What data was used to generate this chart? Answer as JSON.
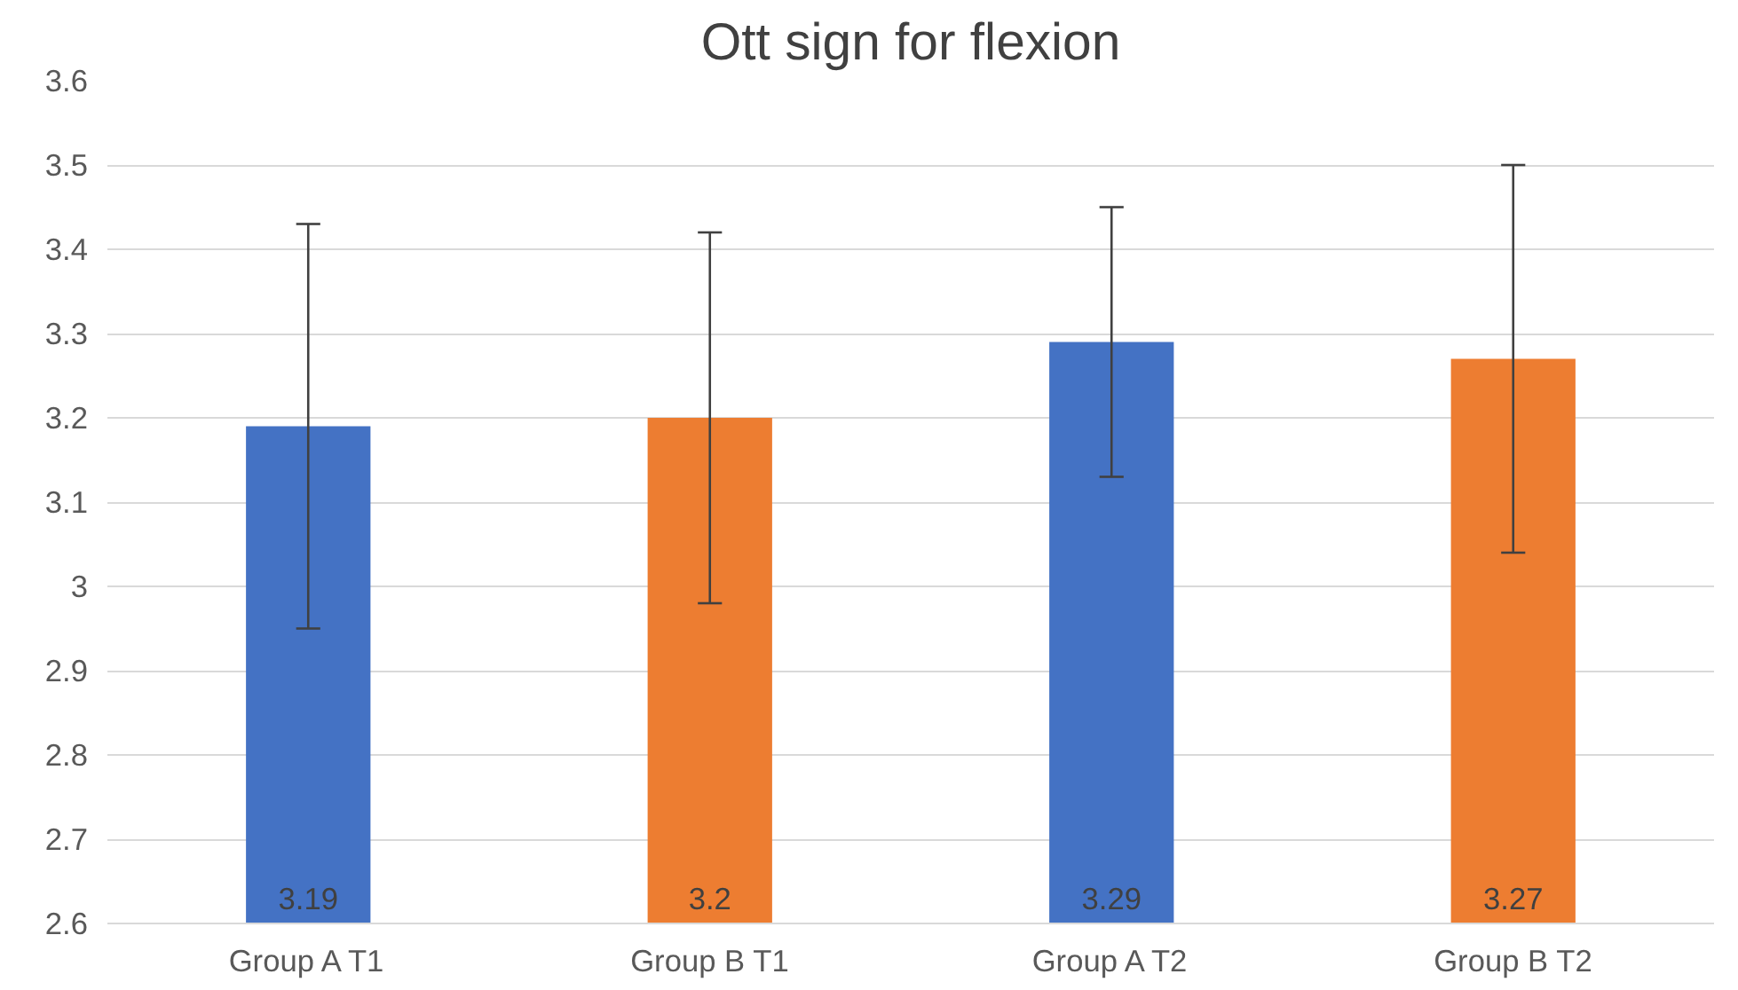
{
  "chart_data": {
    "type": "bar",
    "title": "Ott sign for flexion",
    "categories": [
      "Group A T1",
      "Group B T1",
      "Group A T2",
      "Group B T2"
    ],
    "values": [
      3.19,
      3.2,
      3.29,
      3.27
    ],
    "colors": [
      "#4472c4",
      "#ed7d31",
      "#4472c4",
      "#ed7d31"
    ],
    "errors": [
      0.24,
      0.22,
      0.16,
      0.23
    ],
    "ylim": [
      2.6,
      3.6
    ],
    "yticks": [
      2.6,
      2.7,
      2.8,
      2.9,
      3,
      3.1,
      3.2,
      3.3,
      3.4,
      3.5,
      3.6
    ],
    "grid": "y",
    "data_labels": true
  }
}
